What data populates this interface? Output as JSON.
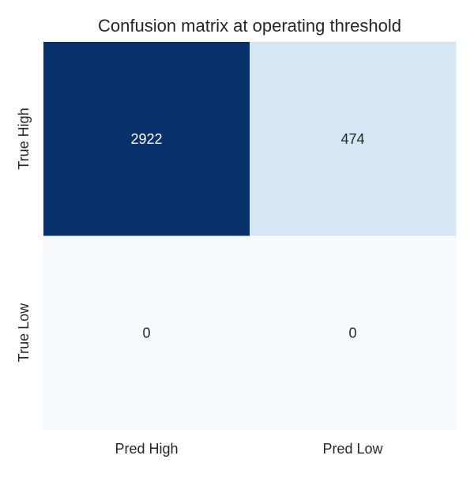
{
  "chart_data": {
    "type": "heatmap",
    "title": "Confusion matrix at operating threshold",
    "xlabel": "",
    "ylabel": "",
    "x_categories": [
      "Pred High",
      "Pred Low"
    ],
    "y_categories": [
      "True High",
      "True Low"
    ],
    "values": [
      [
        2922,
        474
      ],
      [
        0,
        0
      ]
    ],
    "colormap": "Blues",
    "color_range": [
      0,
      2922
    ],
    "colorbar": false,
    "grid": false,
    "colors": {
      "low": "#f7fbff",
      "mid": "#d6e6f4",
      "high": "#08306b",
      "text_dark": "#262626",
      "text_light": "#ffffff"
    }
  }
}
